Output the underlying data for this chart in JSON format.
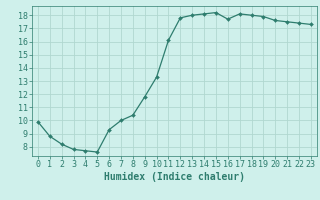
{
  "x": [
    0,
    1,
    2,
    3,
    4,
    5,
    6,
    7,
    8,
    9,
    10,
    11,
    12,
    13,
    14,
    15,
    16,
    17,
    18,
    19,
    20,
    21,
    22,
    23
  ],
  "y": [
    9.9,
    8.8,
    8.2,
    7.8,
    7.7,
    7.6,
    9.3,
    10.0,
    10.4,
    11.8,
    13.3,
    16.1,
    17.8,
    18.0,
    18.1,
    18.2,
    17.7,
    18.1,
    18.0,
    17.9,
    17.6,
    17.5,
    17.4,
    17.3
  ],
  "line_color": "#2e7d6e",
  "marker": "D",
  "marker_size": 2,
  "bg_color": "#cff0eb",
  "grid_color": "#b0d8d0",
  "axis_label_color": "#2e7d6e",
  "tick_color": "#2e7d6e",
  "xlabel": "Humidex (Indice chaleur)",
  "xlim": [
    -0.5,
    23.5
  ],
  "ylim": [
    7.3,
    18.7
  ],
  "yticks": [
    8,
    9,
    10,
    11,
    12,
    13,
    14,
    15,
    16,
    17,
    18
  ],
  "xticks": [
    0,
    1,
    2,
    3,
    4,
    5,
    6,
    7,
    8,
    9,
    10,
    11,
    12,
    13,
    14,
    15,
    16,
    17,
    18,
    19,
    20,
    21,
    22,
    23
  ],
  "xlabel_fontsize": 7,
  "tick_fontsize": 6,
  "linewidth": 0.9
}
